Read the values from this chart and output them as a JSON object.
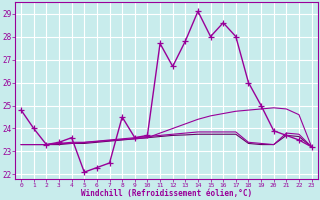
{
  "xlabel": "Windchill (Refroidissement éolien,°C)",
  "background_color": "#c8ecec",
  "grid_color": "#ffffff",
  "line_color": "#990099",
  "x_ticks": [
    0,
    1,
    2,
    3,
    4,
    5,
    6,
    7,
    8,
    9,
    10,
    11,
    12,
    13,
    14,
    15,
    16,
    17,
    18,
    19,
    20,
    21,
    22,
    23
  ],
  "yticks": [
    22,
    23,
    24,
    25,
    26,
    27,
    28,
    29
  ],
  "xlim": [
    -0.5,
    23.5
  ],
  "ylim": [
    21.8,
    29.5
  ],
  "series1_x": [
    0,
    1,
    2,
    3,
    4,
    5,
    6,
    7,
    8,
    9,
    10,
    11,
    12,
    13,
    14,
    15,
    16,
    17,
    18,
    19,
    20,
    21,
    22,
    23
  ],
  "series1_y": [
    24.8,
    24.0,
    23.3,
    23.4,
    23.6,
    22.1,
    22.3,
    22.5,
    24.5,
    23.6,
    23.7,
    27.7,
    26.7,
    27.8,
    29.1,
    28.0,
    28.6,
    28.0,
    26.0,
    25.0,
    23.9,
    23.7,
    23.5,
    23.2
  ],
  "series2_x": [
    2,
    3,
    4,
    10,
    11,
    12,
    13,
    14,
    15,
    16,
    17,
    18,
    19,
    20,
    21,
    22,
    23
  ],
  "series2_y": [
    23.3,
    23.35,
    23.35,
    23.6,
    23.8,
    24.0,
    24.2,
    24.4,
    24.55,
    24.65,
    24.75,
    24.8,
    24.85,
    24.9,
    24.85,
    24.6,
    23.2
  ],
  "series3_x": [
    0,
    1,
    2,
    3,
    4,
    5,
    6,
    7,
    8,
    9,
    10,
    11,
    12,
    13,
    14,
    15,
    16,
    17,
    18,
    19,
    20,
    21,
    22,
    23
  ],
  "series3_y": [
    23.3,
    23.3,
    23.3,
    23.35,
    23.4,
    23.4,
    23.45,
    23.5,
    23.55,
    23.6,
    23.65,
    23.7,
    23.75,
    23.8,
    23.85,
    23.85,
    23.85,
    23.85,
    23.4,
    23.35,
    23.3,
    23.8,
    23.75,
    23.2
  ],
  "series4_x": [
    0,
    1,
    2,
    3,
    4,
    5,
    6,
    7,
    8,
    9,
    10,
    11,
    12,
    13,
    14,
    15,
    16,
    17,
    18,
    19,
    20,
    21,
    22,
    23
  ],
  "series4_y": [
    23.3,
    23.3,
    23.3,
    23.3,
    23.35,
    23.35,
    23.4,
    23.45,
    23.5,
    23.55,
    23.6,
    23.65,
    23.7,
    23.72,
    23.75,
    23.75,
    23.75,
    23.75,
    23.35,
    23.3,
    23.3,
    23.7,
    23.65,
    23.2
  ],
  "color1": "#990099",
  "color2": "#990099",
  "color3": "#990099",
  "color4": "#660066"
}
